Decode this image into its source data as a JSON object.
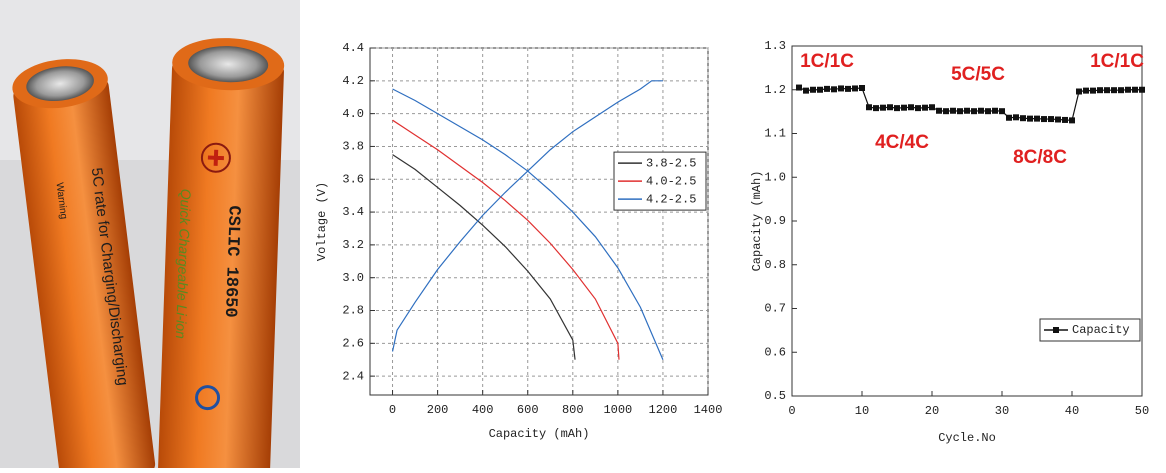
{
  "photo": {
    "battery_texts": [
      "5C rate for Charging/Discharging",
      "Warning",
      "CSLIC 18650",
      "Quick Chargeable Li-ion"
    ]
  },
  "chart_data": [
    {
      "type": "line",
      "xlabel": "Capacity (mAh)",
      "ylabel": "Voltage (V)",
      "xlim": [
        -100,
        1400
      ],
      "ylim": [
        2.285,
        4.4
      ],
      "xticks": [
        0,
        200,
        400,
        600,
        800,
        1000,
        1200,
        1400
      ],
      "yticks": [
        2.4,
        2.6,
        2.8,
        {
          "value": 3,
          "label": "3.0"
        },
        3.2,
        3.4,
        3.6,
        3.8,
        {
          "value": 4,
          "label": "4.0"
        },
        4.2,
        4.4
      ],
      "grid": true,
      "legend": "center right",
      "series": [
        {
          "name": "3.8-2.5",
          "color": "#333333",
          "x": [
            0,
            100,
            200,
            300,
            400,
            500,
            600,
            700,
            800,
            810
          ],
          "values": [
            3.75,
            3.66,
            3.55,
            3.44,
            3.32,
            3.19,
            3.04,
            2.87,
            2.62,
            2.5
          ]
        },
        {
          "name": "4.0-2.5",
          "color": "#e03030",
          "x": [
            0,
            100,
            200,
            300,
            400,
            500,
            600,
            700,
            800,
            900,
            1000,
            1005
          ],
          "values": [
            3.96,
            3.87,
            3.78,
            3.68,
            3.58,
            3.47,
            3.35,
            3.21,
            3.05,
            2.87,
            2.6,
            2.5
          ]
        },
        {
          "name": "4.2-2.5",
          "color": "#2f6fc0",
          "x": [
            0,
            100,
            200,
            300,
            400,
            500,
            600,
            700,
            800,
            900,
            1000,
            1100,
            1200
          ],
          "values": [
            4.15,
            4.08,
            4.0,
            3.92,
            3.84,
            3.75,
            3.65,
            3.53,
            3.4,
            3.25,
            3.06,
            2.82,
            2.5
          ]
        },
        {
          "color": "#2f6fc0",
          "x": [
            0,
            20,
            100,
            200,
            300,
            400,
            500,
            600,
            700,
            800,
            900,
            1000,
            1100,
            1150,
            1200
          ],
          "values": [
            2.55,
            2.68,
            2.85,
            3.05,
            3.22,
            3.38,
            3.52,
            3.65,
            3.78,
            3.89,
            3.98,
            4.07,
            4.15,
            4.2,
            4.2
          ]
        }
      ]
    },
    {
      "type": "line",
      "markers": true,
      "xlabel": "Cycle.No",
      "ylabel": "Capacity (mAh)",
      "xlim": [
        0,
        50
      ],
      "ylim": [
        0.5,
        1.3
      ],
      "xticks": [
        0,
        10,
        20,
        30,
        40,
        50
      ],
      "yticks": [
        0.5,
        0.6,
        0.7,
        0.8,
        0.9,
        {
          "value": 1,
          "label": "1.0"
        },
        1.1,
        1.2,
        1.3
      ],
      "grid": false,
      "legend": "lower right",
      "annotations": [
        "1C/1C",
        "4C/4C",
        "5C/5C",
        "8C/8C",
        "1C/1C"
      ],
      "series": [
        {
          "name": "Capacity",
          "color": "#111111",
          "x": [
            1,
            2,
            3,
            4,
            5,
            6,
            7,
            8,
            9,
            10,
            11,
            12,
            13,
            14,
            15,
            16,
            17,
            18,
            19,
            20,
            21,
            22,
            23,
            24,
            25,
            26,
            27,
            28,
            29,
            30,
            31,
            32,
            33,
            34,
            35,
            36,
            37,
            38,
            39,
            40,
            41,
            42,
            43,
            44,
            45,
            46,
            47,
            48,
            49,
            50
          ],
          "values": [
            1.205,
            1.198,
            1.2,
            1.2,
            1.202,
            1.201,
            1.203,
            1.202,
            1.203,
            1.204,
            1.16,
            1.158,
            1.159,
            1.16,
            1.158,
            1.159,
            1.16,
            1.158,
            1.159,
            1.16,
            1.152,
            1.151,
            1.152,
            1.151,
            1.152,
            1.151,
            1.152,
            1.151,
            1.152,
            1.151,
            1.136,
            1.137,
            1.135,
            1.134,
            1.134,
            1.133,
            1.133,
            1.132,
            1.131,
            1.13,
            1.196,
            1.198,
            1.198,
            1.199,
            1.199,
            1.199,
            1.199,
            1.2,
            1.2,
            1.2
          ]
        }
      ]
    }
  ]
}
